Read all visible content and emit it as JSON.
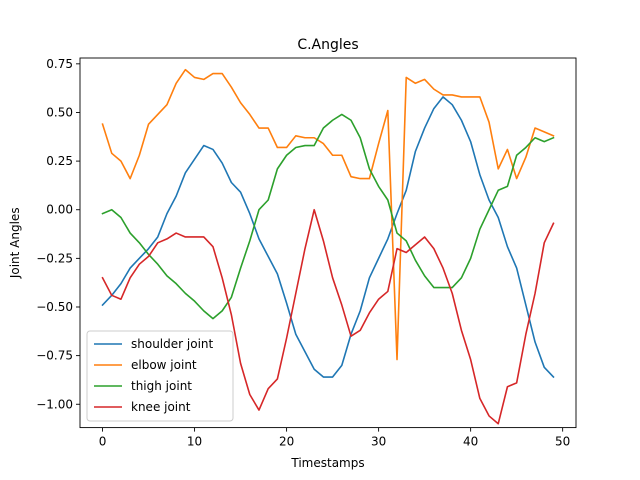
{
  "chart_data": {
    "type": "line",
    "title": "C.Angles",
    "xlabel": "Timestamps",
    "ylabel": "Joint Angles",
    "xlim": [
      -2.45,
      51.45
    ],
    "ylim": [
      -1.12,
      0.78
    ],
    "xticks": [
      0,
      10,
      20,
      30,
      40,
      50
    ],
    "yticks": [
      -1.0,
      -0.75,
      -0.5,
      -0.25,
      0.0,
      0.25,
      0.5,
      0.75
    ],
    "ytick_labels": [
      "−1.00",
      "−0.75",
      "−0.50",
      "−0.25",
      "0.00",
      "0.25",
      "0.50",
      "0.75"
    ],
    "grid": false,
    "legend_position": "lower-left",
    "x": [
      0,
      1,
      2,
      3,
      4,
      5,
      6,
      7,
      8,
      9,
      10,
      11,
      12,
      13,
      14,
      15,
      16,
      17,
      18,
      19,
      20,
      21,
      22,
      23,
      24,
      25,
      26,
      27,
      28,
      29,
      30,
      31,
      32,
      33,
      34,
      35,
      36,
      37,
      38,
      39,
      40,
      41,
      42,
      43,
      44,
      45,
      46,
      47,
      48,
      49
    ],
    "series": [
      {
        "name": "shoulder joint",
        "color": "#1f77b4",
        "values": [
          -0.49,
          -0.44,
          -0.38,
          -0.3,
          -0.25,
          -0.2,
          -0.14,
          -0.02,
          0.07,
          0.19,
          0.26,
          0.33,
          0.31,
          0.24,
          0.14,
          0.09,
          -0.02,
          -0.15,
          -0.24,
          -0.33,
          -0.48,
          -0.64,
          -0.73,
          -0.82,
          -0.86,
          -0.86,
          -0.8,
          -0.64,
          -0.52,
          -0.35,
          -0.25,
          -0.15,
          -0.02,
          0.1,
          0.3,
          0.42,
          0.52,
          0.58,
          0.54,
          0.46,
          0.35,
          0.18,
          0.05,
          -0.04,
          -0.19,
          -0.3,
          -0.49,
          -0.68,
          -0.81,
          -0.86
        ]
      },
      {
        "name": "elbow joint",
        "color": "#ff7f0e",
        "values": [
          0.44,
          0.29,
          0.25,
          0.16,
          0.28,
          0.44,
          0.49,
          0.54,
          0.65,
          0.72,
          0.68,
          0.67,
          0.7,
          0.7,
          0.63,
          0.55,
          0.49,
          0.42,
          0.42,
          0.32,
          0.32,
          0.38,
          0.37,
          0.37,
          0.34,
          0.28,
          0.28,
          0.17,
          0.16,
          0.16,
          0.34,
          0.51,
          -0.77,
          0.68,
          0.65,
          0.67,
          0.62,
          0.59,
          0.59,
          0.58,
          0.58,
          0.58,
          0.45,
          0.21,
          0.31,
          0.16,
          0.27,
          0.42,
          0.4,
          0.38
        ]
      },
      {
        "name": "thigh joint",
        "color": "#2ca02c",
        "values": [
          -0.02,
          0.0,
          -0.04,
          -0.12,
          -0.17,
          -0.23,
          -0.28,
          -0.34,
          -0.38,
          -0.43,
          -0.47,
          -0.52,
          -0.56,
          -0.52,
          -0.45,
          -0.3,
          -0.16,
          0.0,
          0.05,
          0.21,
          0.28,
          0.32,
          0.33,
          0.33,
          0.42,
          0.46,
          0.49,
          0.46,
          0.37,
          0.21,
          0.12,
          0.05,
          -0.12,
          -0.16,
          -0.26,
          -0.34,
          -0.4,
          -0.4,
          -0.4,
          -0.35,
          -0.25,
          -0.1,
          0.0,
          0.1,
          0.12,
          0.28,
          0.32,
          0.37,
          0.35,
          0.37
        ]
      },
      {
        "name": "knee joint",
        "color": "#d62728",
        "values": [
          -0.35,
          -0.44,
          -0.46,
          -0.35,
          -0.28,
          -0.24,
          -0.17,
          -0.15,
          -0.12,
          -0.14,
          -0.14,
          -0.14,
          -0.19,
          -0.35,
          -0.54,
          -0.79,
          -0.95,
          -1.03,
          -0.92,
          -0.87,
          -0.66,
          -0.43,
          -0.2,
          0.0,
          -0.16,
          -0.35,
          -0.49,
          -0.65,
          -0.62,
          -0.53,
          -0.46,
          -0.42,
          -0.2,
          -0.22,
          -0.18,
          -0.14,
          -0.2,
          -0.3,
          -0.43,
          -0.62,
          -0.77,
          -0.97,
          -1.06,
          -1.1,
          -0.91,
          -0.89,
          -0.64,
          -0.43,
          -0.17,
          -0.07
        ]
      }
    ]
  }
}
